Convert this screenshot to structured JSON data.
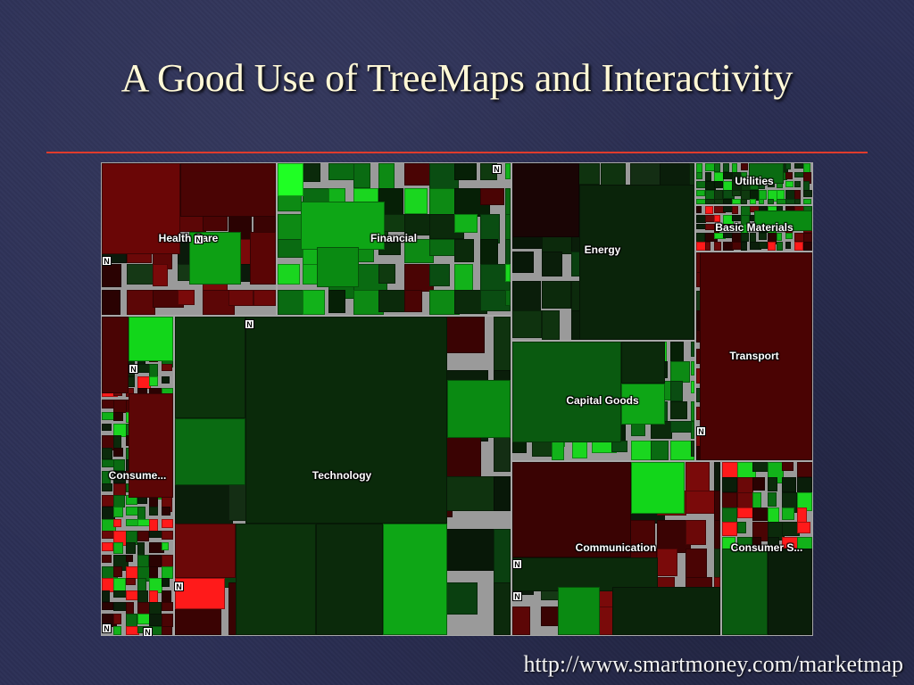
{
  "slide": {
    "title": "A Good Use of TreeMaps and Interactivity",
    "source_url": "http://www.smartmoney.com/marketmap",
    "news_marker": "N"
  },
  "colors": {
    "border": "#a8a8a8",
    "divider": "#e03b2c",
    "positive_bright": "#12e612",
    "positive_mid": "#0a8a12",
    "neutral_dark": "#0b2a0b",
    "negative_mid": "#6b0606",
    "negative_bright": "#ff1a1a"
  },
  "treemap": {
    "sectors": [
      {
        "name": "Health Care"
      },
      {
        "name": "Financial"
      },
      {
        "name": "Energy"
      },
      {
        "name": "Utilities"
      },
      {
        "name": "Basic Materials"
      },
      {
        "name": "Transport"
      },
      {
        "name": "Consume..."
      },
      {
        "name": "Technology"
      },
      {
        "name": "Capital Goods"
      },
      {
        "name": "Communication"
      },
      {
        "name": "Consumer S..."
      }
    ]
  }
}
